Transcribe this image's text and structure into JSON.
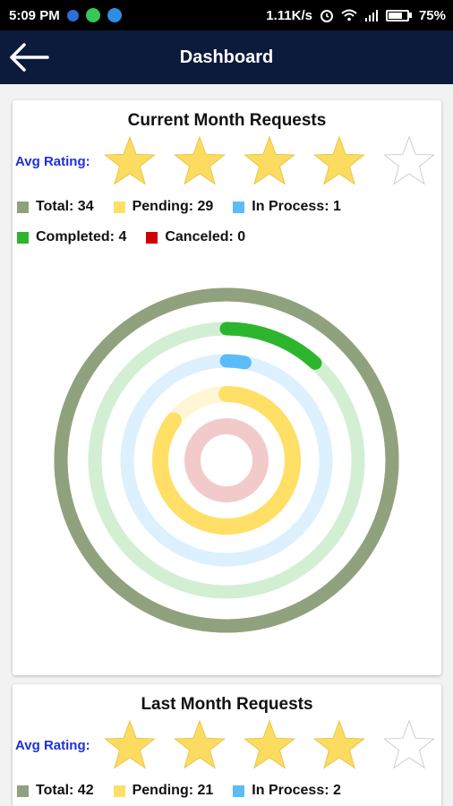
{
  "status": {
    "time": "5:09 PM",
    "speed": "1.11K/s",
    "battery": "75%",
    "battery_level": 0.75
  },
  "header": {
    "title": "Dashboard",
    "back_icon": "arrow-left-icon"
  },
  "current": {
    "title": "Current Month Requests",
    "avg_rating_label": "Avg Rating:",
    "rating": 4,
    "rating_max": 5,
    "legend": {
      "total": "Total: 34",
      "pending": "Pending: 29",
      "in_process": "In Process: 1",
      "completed": "Completed: 4",
      "canceled": "Canceled: 0"
    }
  },
  "last": {
    "title": "Last Month Requests",
    "avg_rating_label": "Avg Rating:",
    "rating": 4,
    "rating_max": 5,
    "legend": {
      "total": "Total: 42",
      "pending": "Pending: 21",
      "in_process": "In Process: 2"
    }
  },
  "colors": {
    "total": "#8fa27d",
    "pending": "#ffdf66",
    "in_process": "#5bbdf8",
    "completed": "#2eb52e",
    "canceled": "#d00000",
    "star_fill": "#fcdc60",
    "rating_label": "#1f30d6",
    "appbar": "#0c1a3c"
  },
  "chart_data": {
    "type": "radial-bar",
    "max": 34,
    "series": [
      {
        "name": "Total",
        "value": 34,
        "color": "#8fa27d",
        "track": "#8fa27d"
      },
      {
        "name": "Completed",
        "value": 4,
        "color": "#2eb52e",
        "track": "#d3efd3"
      },
      {
        "name": "In Process",
        "value": 1,
        "color": "#5bbdf8",
        "track": "#dcf0fd"
      },
      {
        "name": "Pending",
        "value": 29,
        "color": "#ffdf66",
        "track": "#fff6d6"
      },
      {
        "name": "Canceled",
        "value": 0,
        "color": "#d00000",
        "track": "#f3caca"
      }
    ]
  }
}
